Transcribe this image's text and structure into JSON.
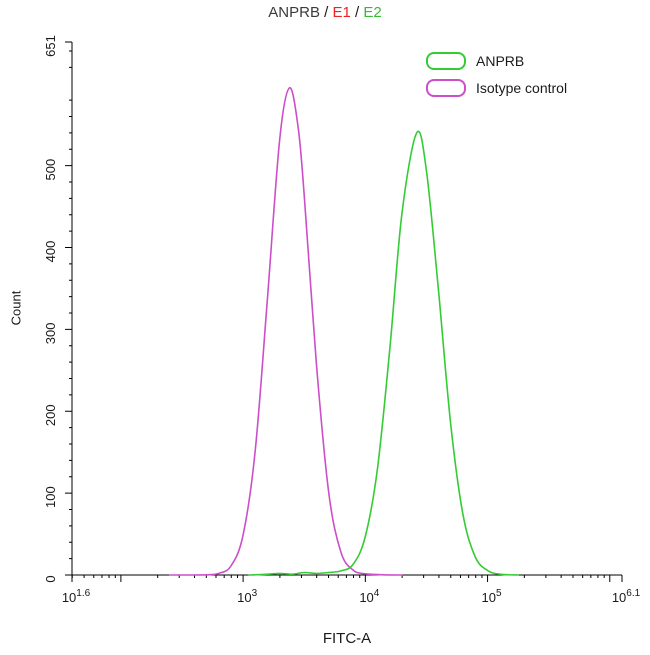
{
  "title": {
    "sample": "ANPRB",
    "sep1": " / ",
    "gate1": "E1",
    "sep2": " / ",
    "gate2": "E2",
    "sample_color": "#3b3b3b",
    "gate1_color": "#ee2222",
    "gate2_color": "#33bb33"
  },
  "legend": {
    "items": [
      {
        "label": "ANPRB",
        "color": "#33cc33"
      },
      {
        "label": "Isotype control",
        "color": "#cc4ec9"
      }
    ]
  },
  "chart_data": {
    "type": "line",
    "title": "ANPRB / E1 / E2",
    "xlabel": "FITC-A",
    "ylabel": "Count",
    "x_scale": "log10",
    "xlim_log": [
      1.6,
      6.1
    ],
    "ylim": [
      0,
      651
    ],
    "grid": false,
    "legend_position": "top-right",
    "y_ticks": [
      0,
      100,
      200,
      300,
      400,
      500,
      651
    ],
    "y_minor_tick_step": 20,
    "x_tick_labels": [
      {
        "base": "10",
        "exp": "1.6",
        "log": 1.6
      },
      {
        "base": "10",
        "exp": "3",
        "log": 3
      },
      {
        "base": "10",
        "exp": "4",
        "log": 4
      },
      {
        "base": "10",
        "exp": "5",
        "log": 5
      },
      {
        "base": "10",
        "exp": "6.1",
        "log": 6.1
      }
    ],
    "series": [
      {
        "name": "Isotype control",
        "color": "#cc4ec9",
        "peak": {
          "x_log": 3.38,
          "count": 595
        },
        "points": [
          [
            2.4,
            0
          ],
          [
            2.55,
            0
          ],
          [
            2.7,
            0.3
          ],
          [
            2.8,
            2
          ],
          [
            2.9,
            11
          ],
          [
            3.0,
            49
          ],
          [
            3.1,
            153
          ],
          [
            3.2,
            340
          ],
          [
            3.3,
            533
          ],
          [
            3.38,
            595
          ],
          [
            3.45,
            547
          ],
          [
            3.5,
            464
          ],
          [
            3.6,
            258
          ],
          [
            3.7,
            101
          ],
          [
            3.8,
            28
          ],
          [
            3.9,
            6
          ],
          [
            4.0,
            1.5
          ],
          [
            4.15,
            0.3
          ],
          [
            4.3,
            0
          ]
        ]
      },
      {
        "name": "ANPRB",
        "color": "#33cc33",
        "peak": {
          "x_log": 4.42,
          "count": 540
        },
        "points": [
          [
            3.05,
            0
          ],
          [
            3.2,
            1
          ],
          [
            3.3,
            2
          ],
          [
            3.4,
            1
          ],
          [
            3.5,
            3
          ],
          [
            3.6,
            2
          ],
          [
            3.7,
            3
          ],
          [
            3.8,
            5
          ],
          [
            3.9,
            13
          ],
          [
            4.0,
            47
          ],
          [
            4.1,
            131
          ],
          [
            4.2,
            276
          ],
          [
            4.3,
            442
          ],
          [
            4.42,
            540
          ],
          [
            4.5,
            494
          ],
          [
            4.6,
            345
          ],
          [
            4.7,
            182
          ],
          [
            4.8,
            73
          ],
          [
            4.9,
            22
          ],
          [
            5.0,
            5.5
          ],
          [
            5.1,
            1
          ],
          [
            5.25,
            0
          ]
        ]
      }
    ]
  }
}
